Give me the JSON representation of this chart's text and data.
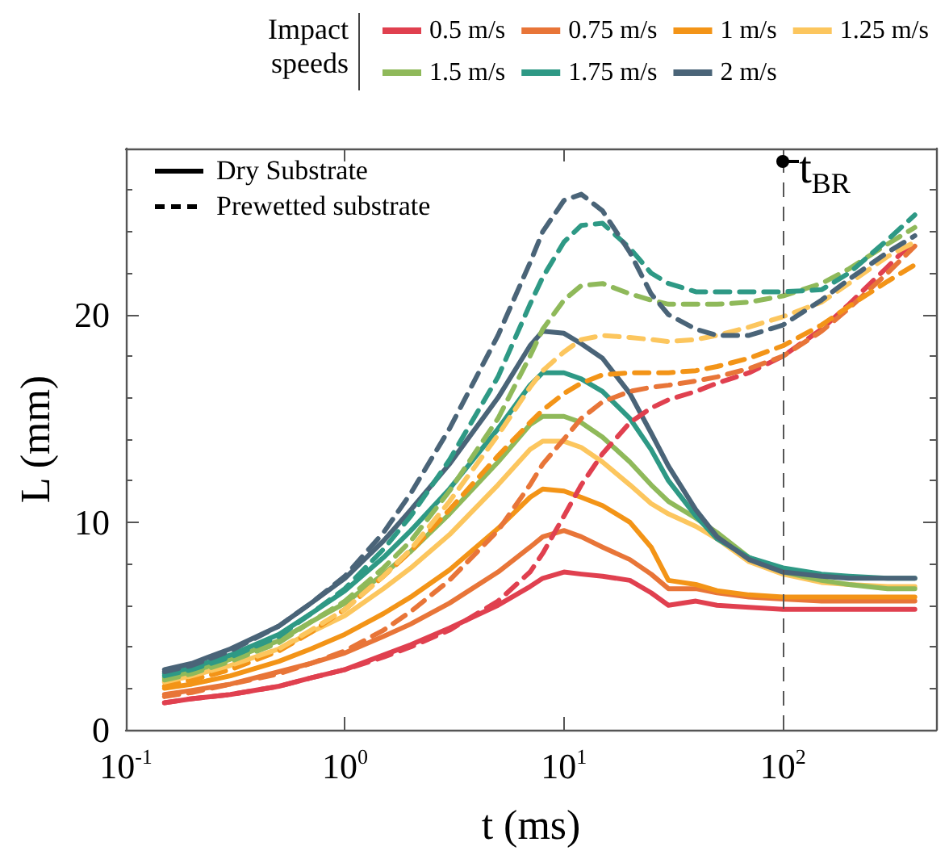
{
  "chart_data": {
    "type": "line",
    "xlabel": "t (ms)",
    "ylabel": "L (mm)",
    "legend_title": "Impact speeds",
    "annotations": [
      "Dry Substrate",
      "Prewetted substrate"
    ],
    "log": "x",
    "grid": false,
    "legend": "top",
    "marker": "none",
    "xlim": [
      0.1,
      500
    ],
    "xticks": [
      {
        "value": 0.1,
        "label": "10$^{-1}$"
      },
      {
        "value": 1,
        "label": "10$^{0}$"
      },
      {
        "value": 10,
        "label": "10$^{1}$"
      },
      {
        "value": 100,
        "label": "10$^{2}$"
      }
    ],
    "ylim": [
      0,
      28
    ],
    "yticks": [
      0,
      10,
      20
    ],
    "ref_lines": [
      {
        "axis": "x",
        "value": 100,
        "label": "t$_{BR}$",
        "color": "#555555",
        "line_style": "dashed"
      }
    ],
    "x": [
      0.15,
      0.2,
      0.3,
      0.5,
      0.7,
      1,
      1.5,
      2,
      3,
      5,
      7,
      8,
      10,
      12,
      15,
      20,
      25,
      30,
      40,
      50,
      70,
      100,
      150,
      200,
      300,
      400
    ],
    "series": [
      {
        "name": "0.5 m/s",
        "color": "#e0404f",
        "line_style": "solid",
        "values": [
          1.3,
          1.5,
          1.7,
          2.1,
          2.5,
          2.9,
          3.6,
          4.1,
          4.9,
          6.0,
          6.9,
          7.3,
          7.6,
          7.5,
          7.4,
          7.2,
          6.6,
          6.0,
          6.2,
          6.0,
          5.9,
          5.8,
          5.8,
          5.8,
          5.8,
          5.8
        ]
      },
      {
        "name": "0.75 m/s",
        "color": "#e87538",
        "line_style": "solid",
        "values": [
          1.7,
          1.9,
          2.2,
          2.8,
          3.2,
          3.7,
          4.5,
          5.1,
          6.1,
          7.6,
          8.8,
          9.3,
          9.6,
          9.3,
          8.8,
          8.2,
          7.5,
          6.8,
          6.8,
          6.6,
          6.4,
          6.3,
          6.2,
          6.2,
          6.2,
          6.2
        ]
      },
      {
        "name": "1 m/s",
        "color": "#f39417",
        "line_style": "solid",
        "values": [
          2.0,
          2.2,
          2.6,
          3.3,
          3.9,
          4.6,
          5.6,
          6.4,
          7.7,
          9.7,
          11.2,
          11.6,
          11.5,
          11.2,
          10.8,
          10.0,
          8.8,
          7.2,
          7.0,
          6.7,
          6.5,
          6.4,
          6.4,
          6.4,
          6.4,
          6.4
        ]
      },
      {
        "name": "1.25 m/s",
        "color": "#fcc65e",
        "line_style": "solid",
        "values": [
          2.3,
          2.6,
          3.1,
          3.9,
          4.7,
          5.5,
          6.8,
          7.8,
          9.4,
          11.8,
          13.5,
          13.9,
          13.9,
          13.6,
          12.9,
          11.8,
          10.9,
          10.4,
          9.8,
          9.2,
          8.1,
          7.5,
          7.1,
          7.0,
          6.9,
          6.9
        ]
      },
      {
        "name": "1.5 m/s",
        "color": "#8fb95a",
        "line_style": "solid",
        "values": [
          2.5,
          2.8,
          3.4,
          4.3,
          5.2,
          6.1,
          7.5,
          8.6,
          10.4,
          12.9,
          14.7,
          15.1,
          15.1,
          14.8,
          14.1,
          12.9,
          11.8,
          11.0,
          10.2,
          9.5,
          8.3,
          7.6,
          7.2,
          7.0,
          6.8,
          6.8
        ]
      },
      {
        "name": "1.75 m/s",
        "color": "#2e9985",
        "line_style": "solid",
        "values": [
          2.7,
          3.0,
          3.6,
          4.6,
          5.6,
          6.7,
          8.3,
          9.6,
          11.6,
          14.5,
          16.6,
          17.2,
          17.2,
          16.9,
          16.3,
          15.0,
          13.5,
          12.0,
          10.3,
          9.2,
          8.3,
          7.8,
          7.5,
          7.4,
          7.3,
          7.3
        ]
      },
      {
        "name": "2 m/s",
        "color": "#4a6478",
        "line_style": "solid",
        "values": [
          2.9,
          3.2,
          3.9,
          5.0,
          6.1,
          7.3,
          9.1,
          10.6,
          12.8,
          16.0,
          18.5,
          19.2,
          19.1,
          18.6,
          17.9,
          16.2,
          14.3,
          12.7,
          10.6,
          9.3,
          8.2,
          7.6,
          7.4,
          7.3,
          7.3,
          7.3
        ]
      },
      {
        "color": "#e0404f",
        "line_style": "dashed",
        "values": [
          1.3,
          1.5,
          1.7,
          2.1,
          2.5,
          2.9,
          3.5,
          4.0,
          4.8,
          6.2,
          7.6,
          8.5,
          10.3,
          11.8,
          13.3,
          14.8,
          15.5,
          15.9,
          16.3,
          16.7,
          17.2,
          18.0,
          19.3,
          20.5,
          22.3,
          23.6
        ]
      },
      {
        "color": "#e87538",
        "line_style": "dashed",
        "values": [
          1.6,
          1.8,
          2.2,
          2.7,
          3.2,
          3.8,
          4.8,
          5.7,
          7.2,
          9.6,
          11.8,
          12.8,
          14.0,
          15.0,
          15.8,
          16.3,
          16.5,
          16.6,
          16.8,
          17.0,
          17.4,
          18.0,
          19.2,
          20.3,
          22.0,
          23.3
        ]
      },
      {
        "color": "#f39417",
        "line_style": "dashed",
        "values": [
          2.1,
          2.4,
          2.9,
          3.8,
          4.7,
          5.8,
          7.4,
          8.6,
          10.6,
          13.2,
          14.8,
          15.4,
          16.2,
          16.7,
          17.1,
          17.2,
          17.2,
          17.2,
          17.3,
          17.5,
          17.9,
          18.5,
          19.5,
          20.4,
          21.6,
          22.4
        ]
      },
      {
        "color": "#fcc65e",
        "line_style": "dashed",
        "values": [
          2.3,
          2.6,
          3.1,
          3.9,
          4.8,
          5.8,
          7.4,
          8.7,
          11.0,
          14.2,
          16.5,
          17.3,
          18.2,
          18.8,
          19.0,
          18.9,
          18.8,
          18.7,
          18.8,
          19.0,
          19.4,
          19.9,
          20.6,
          21.5,
          22.8,
          23.5
        ]
      },
      {
        "color": "#8fb95a",
        "line_style": "dashed",
        "values": [
          2.4,
          2.7,
          3.3,
          4.2,
          5.2,
          6.2,
          7.8,
          9.1,
          11.5,
          15.0,
          18.0,
          19.3,
          20.7,
          21.4,
          21.5,
          21.0,
          20.7,
          20.5,
          20.5,
          20.5,
          20.6,
          20.9,
          21.5,
          22.2,
          23.4,
          24.2
        ]
      },
      {
        "color": "#2e9985",
        "line_style": "dashed",
        "values": [
          2.6,
          2.9,
          3.5,
          4.5,
          5.6,
          6.8,
          8.7,
          10.3,
          13.0,
          17.0,
          20.5,
          21.8,
          23.5,
          24.3,
          24.4,
          23.2,
          22.0,
          21.5,
          21.1,
          21.1,
          21.1,
          21.1,
          21.2,
          22.0,
          23.6,
          24.8
        ]
      },
      {
        "color": "#4a6478",
        "line_style": "dashed",
        "values": [
          2.8,
          3.1,
          3.8,
          5.0,
          6.1,
          7.4,
          9.5,
          11.4,
          14.5,
          19.0,
          22.5,
          24.0,
          25.5,
          25.8,
          25.0,
          23.0,
          21.0,
          20.0,
          19.3,
          19.0,
          19.0,
          19.5,
          20.7,
          21.7,
          23.0,
          23.8
        ]
      }
    ]
  }
}
